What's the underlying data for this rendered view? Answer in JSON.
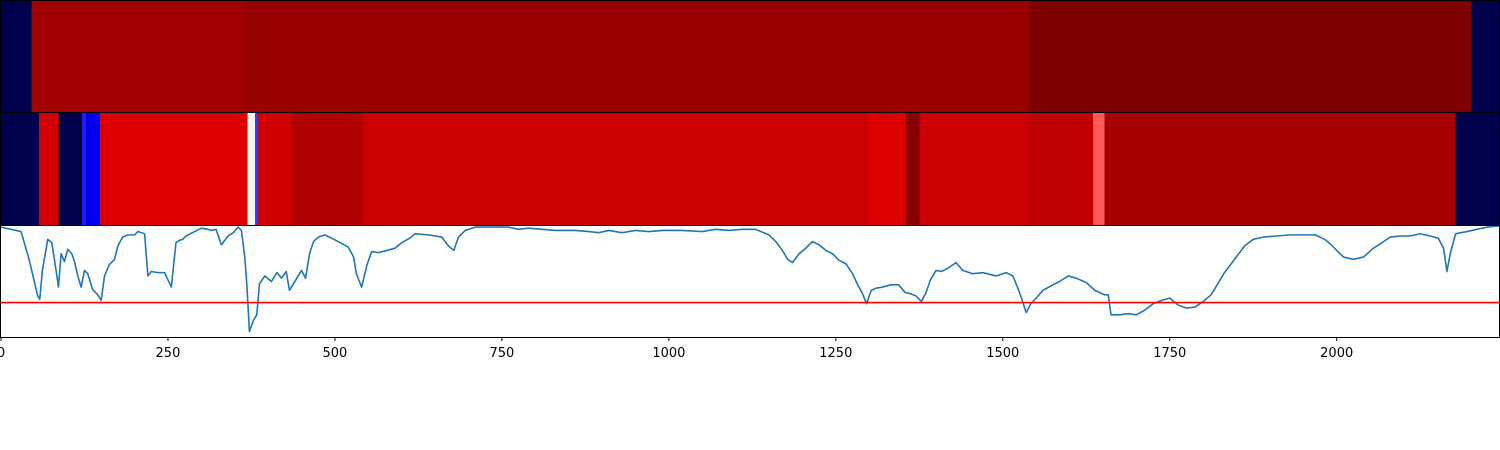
{
  "chart_data": [
    {
      "type": "heatmap",
      "panel": "top",
      "colormap": "seismic",
      "xlim": [
        0,
        2243
      ],
      "segments": [
        {
          "x0": 0,
          "x1": 46,
          "color": "#00004c"
        },
        {
          "x0": 46,
          "x1": 362,
          "color": "#a00000"
        },
        {
          "x0": 362,
          "x1": 1540,
          "color": "#980000"
        },
        {
          "x0": 1540,
          "x1": 2202,
          "color": "#7e0000"
        },
        {
          "x0": 2202,
          "x1": 2243,
          "color": "#00004c"
        }
      ]
    },
    {
      "type": "heatmap",
      "panel": "middle",
      "colormap": "seismic",
      "xlim": [
        0,
        2243
      ],
      "segments": [
        {
          "x0": 0,
          "x1": 57,
          "color": "#00004c"
        },
        {
          "x0": 57,
          "x1": 86,
          "color": "#d40000"
        },
        {
          "x0": 86,
          "x1": 121,
          "color": "#00004c"
        },
        {
          "x0": 121,
          "x1": 127,
          "color": "#1c1cff"
        },
        {
          "x0": 127,
          "x1": 148,
          "color": "#0000f0"
        },
        {
          "x0": 148,
          "x1": 369,
          "color": "#dd0000"
        },
        {
          "x0": 369,
          "x1": 380,
          "color": "#f4f4f4"
        },
        {
          "x0": 380,
          "x1": 384,
          "color": "#3a3aff"
        },
        {
          "x0": 384,
          "x1": 434,
          "color": "#d00000"
        },
        {
          "x0": 434,
          "x1": 541,
          "color": "#b00000"
        },
        {
          "x0": 541,
          "x1": 1299,
          "color": "#cc0000"
        },
        {
          "x0": 1299,
          "x1": 1355,
          "color": "#dc0000"
        },
        {
          "x0": 1355,
          "x1": 1375,
          "color": "#880000"
        },
        {
          "x0": 1375,
          "x1": 1537,
          "color": "#cc0000"
        },
        {
          "x0": 1537,
          "x1": 1635,
          "color": "#c00000"
        },
        {
          "x0": 1635,
          "x1": 1652,
          "color": "#ff5a5a"
        },
        {
          "x0": 1652,
          "x1": 2178,
          "color": "#a80000"
        },
        {
          "x0": 2178,
          "x1": 2243,
          "color": "#00004c"
        }
      ]
    },
    {
      "type": "line",
      "panel": "bottom",
      "xlim": [
        0,
        2243
      ],
      "ylim": [
        0,
        1
      ],
      "xticks": [
        0,
        250,
        500,
        750,
        1000,
        1250,
        1500,
        1750,
        2000
      ],
      "tick_labels": [
        "0",
        "250",
        "500",
        "750",
        "1000",
        "1250",
        "1500",
        "1750",
        "2000"
      ],
      "threshold": {
        "y": 0.31,
        "color": "#ff0000"
      },
      "series": [
        {
          "color": "#1f77b4",
          "points": [
            [
              0,
              0.99
            ],
            [
              30,
              0.95
            ],
            [
              42,
              0.7
            ],
            [
              55,
              0.37
            ],
            [
              58,
              0.34
            ],
            [
              62,
              0.6
            ],
            [
              70,
              0.88
            ],
            [
              76,
              0.85
            ],
            [
              82,
              0.62
            ],
            [
              86,
              0.45
            ],
            [
              90,
              0.75
            ],
            [
              95,
              0.68
            ],
            [
              100,
              0.79
            ],
            [
              106,
              0.75
            ],
            [
              110,
              0.68
            ],
            [
              115,
              0.55
            ],
            [
              120,
              0.45
            ],
            [
              125,
              0.6
            ],
            [
              130,
              0.57
            ],
            [
              137,
              0.43
            ],
            [
              145,
              0.38
            ],
            [
              150,
              0.33
            ],
            [
              155,
              0.55
            ],
            [
              162,
              0.65
            ],
            [
              170,
              0.7
            ],
            [
              175,
              0.82
            ],
            [
              182,
              0.9
            ],
            [
              190,
              0.92
            ],
            [
              200,
              0.92
            ],
            [
              205,
              0.95
            ],
            [
              215,
              0.93
            ],
            [
              220,
              0.55
            ],
            [
              225,
              0.59
            ],
            [
              235,
              0.58
            ],
            [
              245,
              0.58
            ],
            [
              255,
              0.45
            ],
            [
              262,
              0.85
            ],
            [
              267,
              0.87
            ],
            [
              272,
              0.88
            ],
            [
              277,
              0.91
            ],
            [
              290,
              0.95
            ],
            [
              300,
              0.98
            ],
            [
              310,
              0.97
            ],
            [
              315,
              0.96
            ],
            [
              322,
              0.97
            ],
            [
              330,
              0.83
            ],
            [
              340,
              0.91
            ],
            [
              348,
              0.94
            ],
            [
              355,
              0.99
            ],
            [
              360,
              0.96
            ],
            [
              365,
              0.72
            ],
            [
              368,
              0.48
            ],
            [
              372,
              0.05
            ],
            [
              375,
              0.1
            ],
            [
              378,
              0.15
            ],
            [
              383,
              0.2
            ],
            [
              387,
              0.48
            ],
            [
              395,
              0.55
            ],
            [
              405,
              0.5
            ],
            [
              413,
              0.58
            ],
            [
              420,
              0.53
            ],
            [
              427,
              0.59
            ],
            [
              432,
              0.42
            ],
            [
              437,
              0.47
            ],
            [
              445,
              0.55
            ],
            [
              450,
              0.6
            ],
            [
              456,
              0.53
            ],
            [
              462,
              0.75
            ],
            [
              468,
              0.86
            ],
            [
              475,
              0.9
            ],
            [
              485,
              0.92
            ],
            [
              495,
              0.89
            ],
            [
              508,
              0.85
            ],
            [
              520,
              0.81
            ],
            [
              528,
              0.72
            ],
            [
              532,
              0.57
            ],
            [
              540,
              0.45
            ],
            [
              548,
              0.65
            ],
            [
              555,
              0.77
            ],
            [
              565,
              0.76
            ],
            [
              578,
              0.78
            ],
            [
              590,
              0.8
            ],
            [
              600,
              0.85
            ],
            [
              612,
              0.89
            ],
            [
              620,
              0.93
            ],
            [
              640,
              0.92
            ],
            [
              660,
              0.9
            ],
            [
              670,
              0.82
            ],
            [
              678,
              0.78
            ],
            [
              685,
              0.9
            ],
            [
              695,
              0.96
            ],
            [
              710,
              0.99
            ],
            [
              730,
              0.99
            ],
            [
              760,
              0.99
            ],
            [
              775,
              0.97
            ],
            [
              790,
              0.98
            ],
            [
              810,
              0.97
            ],
            [
              830,
              0.96
            ],
            [
              860,
              0.96
            ],
            [
              880,
              0.95
            ],
            [
              895,
              0.94
            ],
            [
              910,
              0.96
            ],
            [
              930,
              0.94
            ],
            [
              950,
              0.96
            ],
            [
              970,
              0.95
            ],
            [
              990,
              0.96
            ],
            [
              1020,
              0.96
            ],
            [
              1050,
              0.95
            ],
            [
              1070,
              0.97
            ],
            [
              1090,
              0.96
            ],
            [
              1110,
              0.97
            ],
            [
              1130,
              0.97
            ],
            [
              1150,
              0.92
            ],
            [
              1160,
              0.86
            ],
            [
              1170,
              0.78
            ],
            [
              1178,
              0.7
            ],
            [
              1185,
              0.67
            ],
            [
              1195,
              0.75
            ],
            [
              1205,
              0.8
            ],
            [
              1215,
              0.86
            ],
            [
              1225,
              0.83
            ],
            [
              1235,
              0.78
            ],
            [
              1245,
              0.75
            ],
            [
              1255,
              0.69
            ],
            [
              1265,
              0.66
            ],
            [
              1275,
              0.57
            ],
            [
              1282,
              0.48
            ],
            [
              1290,
              0.39
            ],
            [
              1296,
              0.3
            ],
            [
              1303,
              0.42
            ],
            [
              1310,
              0.44
            ],
            [
              1320,
              0.45
            ],
            [
              1332,
              0.47
            ],
            [
              1344,
              0.47
            ],
            [
              1354,
              0.4
            ],
            [
              1362,
              0.39
            ],
            [
              1370,
              0.37
            ],
            [
              1378,
              0.32
            ],
            [
              1385,
              0.4
            ],
            [
              1392,
              0.52
            ],
            [
              1400,
              0.6
            ],
            [
              1408,
              0.59
            ],
            [
              1418,
              0.62
            ],
            [
              1430,
              0.67
            ],
            [
              1440,
              0.6
            ],
            [
              1455,
              0.57
            ],
            [
              1470,
              0.58
            ],
            [
              1490,
              0.55
            ],
            [
              1505,
              0.58
            ],
            [
              1515,
              0.55
            ],
            [
              1522,
              0.45
            ],
            [
              1528,
              0.35
            ],
            [
              1535,
              0.22
            ],
            [
              1542,
              0.3
            ],
            [
              1550,
              0.35
            ],
            [
              1560,
              0.42
            ],
            [
              1572,
              0.46
            ],
            [
              1585,
              0.5
            ],
            [
              1598,
              0.55
            ],
            [
              1610,
              0.53
            ],
            [
              1625,
              0.49
            ],
            [
              1638,
              0.42
            ],
            [
              1652,
              0.38
            ],
            [
              1658,
              0.38
            ],
            [
              1662,
              0.2
            ],
            [
              1675,
              0.2
            ],
            [
              1688,
              0.21
            ],
            [
              1700,
              0.2
            ],
            [
              1712,
              0.24
            ],
            [
              1725,
              0.3
            ],
            [
              1738,
              0.33
            ],
            [
              1750,
              0.35
            ],
            [
              1762,
              0.29
            ],
            [
              1775,
              0.26
            ],
            [
              1788,
              0.27
            ],
            [
              1800,
              0.32
            ],
            [
              1812,
              0.38
            ],
            [
              1822,
              0.48
            ],
            [
              1832,
              0.58
            ],
            [
              1842,
              0.66
            ],
            [
              1852,
              0.74
            ],
            [
              1862,
              0.82
            ],
            [
              1875,
              0.88
            ],
            [
              1890,
              0.9
            ],
            [
              1910,
              0.91
            ],
            [
              1930,
              0.92
            ],
            [
              1950,
              0.92
            ],
            [
              1968,
              0.92
            ],
            [
              1982,
              0.88
            ],
            [
              1992,
              0.83
            ],
            [
              2000,
              0.78
            ],
            [
              2010,
              0.72
            ],
            [
              2025,
              0.7
            ],
            [
              2040,
              0.72
            ],
            [
              2055,
              0.8
            ],
            [
              2068,
              0.85
            ],
            [
              2080,
              0.9
            ],
            [
              2095,
              0.91
            ],
            [
              2110,
              0.91
            ],
            [
              2125,
              0.93
            ],
            [
              2140,
              0.91
            ],
            [
              2152,
              0.89
            ],
            [
              2160,
              0.8
            ],
            [
              2165,
              0.59
            ],
            [
              2170,
              0.75
            ],
            [
              2178,
              0.93
            ],
            [
              2195,
              0.95
            ],
            [
              2210,
              0.97
            ],
            [
              2225,
              0.99
            ],
            [
              2243,
              1.0
            ]
          ]
        }
      ]
    }
  ]
}
